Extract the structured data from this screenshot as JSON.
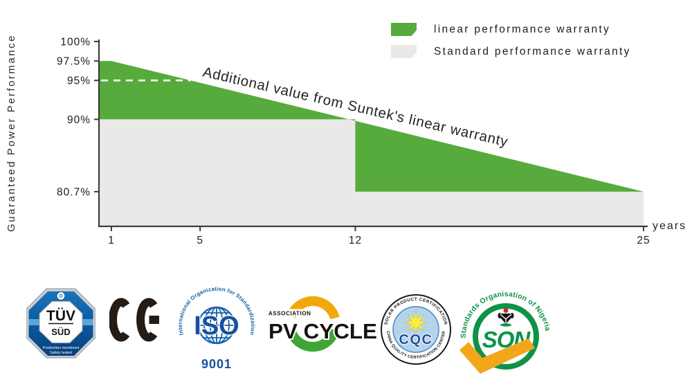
{
  "chart": {
    "legend": [
      {
        "label": "linear performance warranty",
        "color": "#56ab3c"
      },
      {
        "label": "Standard performance warranty",
        "color": "#e9e9e7"
      }
    ]
  },
  "chart_data": {
    "type": "area",
    "title": "",
    "ylabel": "Guaranteed Power Performance",
    "xlabel": "years",
    "annotation": "Additional value from Suntek's linear warranty",
    "x_ticks": [
      1,
      5,
      12,
      25
    ],
    "y_ticks": [
      "100%",
      "97.5%",
      "95%",
      "90%",
      "80.7%"
    ],
    "y_tick_values": [
      100,
      97.5,
      95,
      90,
      80.7
    ],
    "xlim": [
      1,
      25
    ],
    "ylim": [
      76.2,
      100
    ],
    "grid": false,
    "legend_position": "top-right",
    "series": [
      {
        "name": "linear performance warranty",
        "type": "area",
        "color": "#56ab3c",
        "points": [
          {
            "x": 1,
            "y": 97.5
          },
          {
            "x": 25,
            "y": 80.7
          }
        ],
        "note": "linear decline 0.7% per year from 97.5% at year 1 to 80.7% at year 25"
      },
      {
        "name": "Standard performance warranty",
        "type": "step-area",
        "color": "#e9e9e7",
        "step_points": [
          {
            "x": 1,
            "y": 90
          },
          {
            "x": 12,
            "y": 90
          },
          {
            "x": 12,
            "y": 80.7
          },
          {
            "x": 25,
            "y": 80.7
          }
        ],
        "note": "90% for years 1-12, 80.7% for years 12-25"
      }
    ],
    "dashed_guide": {
      "y": 95,
      "color": "#ffffff",
      "note": "white dashed line at 95% from axis to linear line near year 5"
    },
    "axis_color": "#3c3c3c"
  },
  "logos": {
    "tuv": {
      "line1": "TÜV",
      "line2": "SÜD",
      "caption1": "Production monitored",
      "caption2": "Safety tested"
    },
    "ce": {
      "name": "CE"
    },
    "iso": {
      "curved": "International Organization for Standardization",
      "big": "ISO",
      "number": "9001"
    },
    "pvcycle": {
      "small": "ASSOCIATION",
      "big": "PV CYCLE"
    },
    "cqc": {
      "top": "SOLAR PRODUCT CERTIFICATION",
      "bottom": "CHINA QUALITY CERTIFICATION CENTER",
      "big": "CQC"
    },
    "son": {
      "curved": "Standards Organisation of Nigeria",
      "big": "SON"
    }
  }
}
